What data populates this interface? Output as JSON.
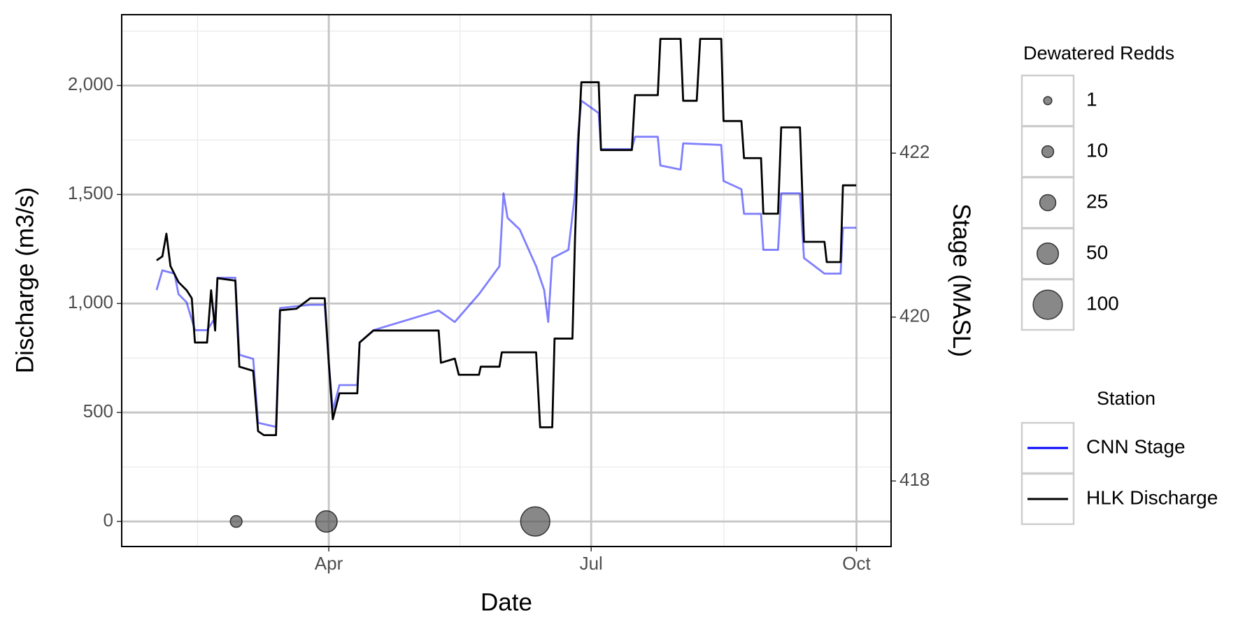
{
  "chart_data": {
    "type": "line",
    "x_label": "Date",
    "y_label": "Discharge (m3/s)",
    "y2_label": "Stage (MASL)",
    "xlim": [
      19.2,
      286
    ],
    "ylim": [
      -115,
      2325
    ],
    "y2lim": [
      417.2,
      423.69
    ],
    "xticks": [
      {
        "value": 91,
        "label": "Apr"
      },
      {
        "value": 182,
        "label": "Jul"
      },
      {
        "value": 274,
        "label": "Oct"
      }
    ],
    "xminor": [
      45.5,
      136.5,
      228
    ],
    "yticks": [
      0,
      500,
      {
        "value": 1000,
        "label": "1,000"
      },
      {
        "value": 1500,
        "label": "1,500"
      },
      {
        "value": 2000,
        "label": "2,000"
      }
    ],
    "yminor": [
      250,
      750,
      1250,
      1750,
      2250
    ],
    "y2ticks": [
      418,
      420,
      422
    ],
    "grid": true,
    "legend_title": "Station",
    "series": [
      {
        "name": "CNN Stage",
        "color": "#0000ff",
        "alpha": 0.5,
        "axis": "y2",
        "x": [
          31.3,
          33.3,
          37.5,
          38.9,
          41.7,
          44.6,
          48.8,
          51.6,
          52.4,
          58.6,
          60.0,
          64.8,
          66.5,
          72.7,
          74.1,
          84.6,
          89.6,
          91.0,
          92.4,
          94.7,
          100.9,
          101.7,
          106.5,
          129.1,
          134.7,
          143.1,
          150.2,
          151.6,
          153.0,
          157.2,
          162.9,
          165.7,
          167.1,
          168.5,
          174.1,
          176.4,
          177.5,
          178.6,
          184.6,
          185.4,
          196.1,
          197.2,
          205.1,
          206.0,
          213.0,
          213.9,
          227.1,
          227.9,
          234.1,
          235.0,
          240.9,
          241.7,
          246.8,
          247.9,
          254.4,
          255.8,
          262.9,
          268.5,
          269.3,
          273.9
        ],
        "values": [
          420.33,
          420.57,
          420.53,
          420.28,
          420.18,
          419.84,
          419.84,
          419.99,
          420.48,
          420.48,
          419.54,
          419.49,
          418.71,
          418.66,
          420.11,
          420.15,
          420.15,
          419.46,
          418.86,
          419.17,
          419.17,
          419.69,
          419.84,
          420.08,
          419.94,
          420.28,
          420.62,
          421.51,
          421.21,
          421.07,
          420.62,
          420.33,
          419.94,
          420.72,
          420.82,
          421.51,
          422.25,
          422.64,
          422.49,
          422.05,
          422.05,
          422.2,
          422.2,
          421.85,
          421.8,
          422.12,
          422.1,
          421.66,
          421.56,
          421.26,
          421.26,
          420.82,
          420.82,
          421.51,
          421.51,
          420.72,
          420.53,
          420.53,
          421.09,
          421.09
        ]
      },
      {
        "name": "HLK Discharge",
        "color": "#000000",
        "alpha": 1,
        "x": [
          31.3,
          33.3,
          34.7,
          36.1,
          38.9,
          41.7,
          43.5,
          44.6,
          48.8,
          50.2,
          51.6,
          52.4,
          58.6,
          60.0,
          64.8,
          66.5,
          68.5,
          72.7,
          74.1,
          79.8,
          84.6,
          89.6,
          91.0,
          92.4,
          94.7,
          100.9,
          101.7,
          106.5,
          120.6,
          129.1,
          129.9,
          134.7,
          136.1,
          143.1,
          143.7,
          150.2,
          151.0,
          162.9,
          164.3,
          168.5,
          169.3,
          175.5,
          176.4,
          177.5,
          178.6,
          184.6,
          185.4,
          196.1,
          197.2,
          205.1,
          206.0,
          213.0,
          213.9,
          218.6,
          219.8,
          227.1,
          227.9,
          234.1,
          235.0,
          240.9,
          241.7,
          246.8,
          247.9,
          254.4,
          255.8,
          262.9,
          263.7,
          268.5,
          269.3,
          273.9
        ],
        "values": [
          1198,
          1216,
          1320,
          1172,
          1098,
          1061,
          1024,
          821,
          821,
          1061,
          876,
          1116,
          1105,
          710,
          691,
          414,
          396,
          396,
          969,
          976,
          1024,
          1024,
          728,
          469,
          588,
          588,
          821,
          876,
          876,
          876,
          728,
          747,
          673,
          673,
          710,
          710,
          776,
          776,
          432,
          432,
          839,
          839,
          1301,
          1726,
          2015,
          2015,
          1704,
          1704,
          1956,
          1956,
          2214,
          2214,
          1930,
          1930,
          2214,
          2214,
          1837,
          1837,
          1667,
          1667,
          1412,
          1412,
          1808,
          1808,
          1283,
          1283,
          1190,
          1190,
          1542,
          1542
        ]
      }
    ],
    "bubbles": {
      "title": "Dewatered Redds",
      "color": "#555555",
      "x": [
        58.9,
        90.2,
        162.6
      ],
      "values": [
        0,
        0,
        0
      ],
      "sizes": [
        10,
        50,
        100
      ],
      "legend_sizes": [
        1,
        10,
        25,
        50,
        100
      ]
    }
  }
}
